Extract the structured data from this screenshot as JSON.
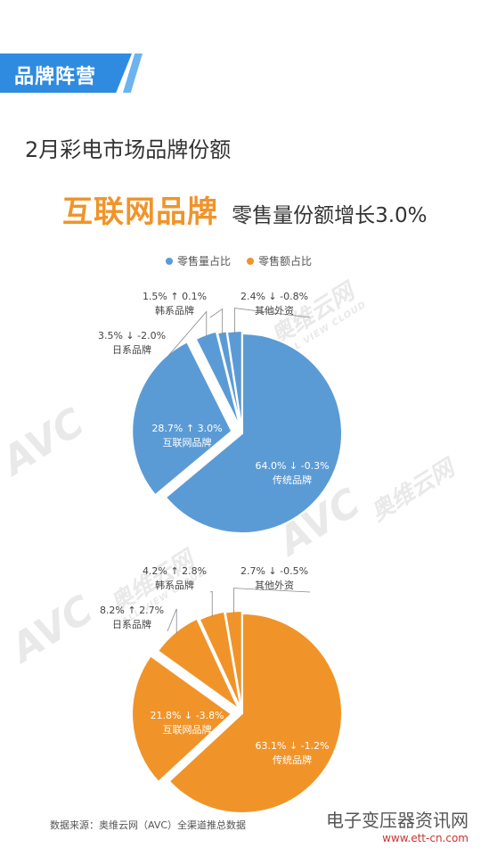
{
  "banner": {
    "title": "品牌阵营"
  },
  "subtitle": "2月彩电市场品牌份额",
  "headline": {
    "main": "互联网品牌",
    "sub": "零售量份额增长3.0%"
  },
  "legend": [
    {
      "label": "零售量占比",
      "color": "#5b9bd5"
    },
    {
      "label": "零售额占比",
      "color": "#f0942a"
    }
  ],
  "chart_data": [
    {
      "type": "pie",
      "series_name": "零售量占比",
      "color": "#5b9bd5",
      "slices": [
        {
          "name": "传统品牌",
          "value": 64.0,
          "change": "↓ -0.3%"
        },
        {
          "name": "互联网品牌",
          "value": 28.7,
          "change": "↑ 3.0%"
        },
        {
          "name": "日系品牌",
          "value": 3.5,
          "change": "↓ -2.0%"
        },
        {
          "name": "韩系品牌",
          "value": 1.5,
          "change": "↑ 0.1%"
        },
        {
          "name": "其他外资",
          "value": 2.4,
          "change": "↓ -0.8%"
        }
      ]
    },
    {
      "type": "pie",
      "series_name": "零售额占比",
      "color": "#f0942a",
      "slices": [
        {
          "name": "传统品牌",
          "value": 63.1,
          "change": "↓ -1.2%"
        },
        {
          "name": "互联网品牌",
          "value": 21.8,
          "change": "↓ -3.8%"
        },
        {
          "name": "日系品牌",
          "value": 8.2,
          "change": "↑ 2.7%"
        },
        {
          "name": "韩系品牌",
          "value": 4.2,
          "change": "↑ 2.8%"
        },
        {
          "name": "其他外资",
          "value": 2.7,
          "change": "↓ -0.5%"
        }
      ]
    }
  ],
  "watermark": {
    "logo": "AVC",
    "brand": "奥维云网",
    "sub": "ALL VIEW CLOUD"
  },
  "source": "数据来源：奥维云网（AVC）全渠道推总数据",
  "corner": {
    "main": "电子变压器资讯网",
    "url": "www.ett-cn.com"
  }
}
